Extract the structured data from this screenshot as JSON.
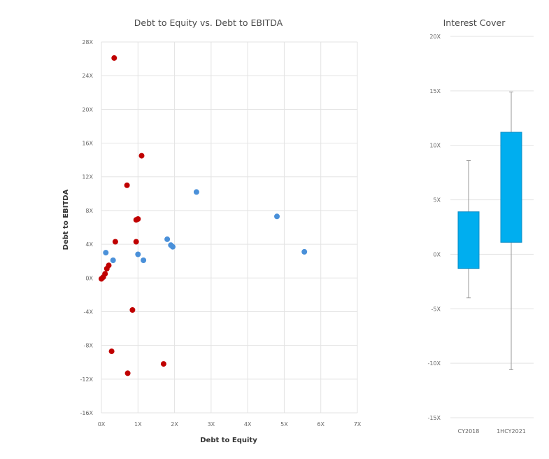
{
  "chart_data": [
    {
      "type": "scatter",
      "title": "Debt to Equity vs. Debt to EBITDA",
      "xlabel": "Debt to Equity",
      "ylabel": "Debt to EBITDA",
      "xlim": [
        0,
        7
      ],
      "ylim": [
        -16,
        28
      ],
      "x_ticks": [
        "0X",
        "1X",
        "2X",
        "3X",
        "4X",
        "5X",
        "6X",
        "7X"
      ],
      "y_ticks": [
        "28X",
        "24X",
        "20X",
        "16X",
        "12X",
        "8X",
        "4X",
        "0X",
        "-4X",
        "-8X",
        "-12X",
        "-16X"
      ],
      "grid": true,
      "colors": {
        "blue": "#4a90d9",
        "red": "#c00000"
      },
      "series": [
        {
          "color": "#4a90d9",
          "points": [
            [
              0.12,
              3.0
            ],
            [
              0.32,
              2.1
            ],
            [
              1.0,
              2.8
            ],
            [
              1.15,
              2.1
            ],
            [
              1.8,
              4.6
            ],
            [
              1.9,
              3.9
            ],
            [
              1.95,
              3.7
            ],
            [
              2.6,
              10.2
            ],
            [
              4.8,
              7.3
            ],
            [
              5.55,
              3.1
            ],
            [
              0.05,
              0.1
            ]
          ]
        },
        {
          "color": "#c00000",
          "points": [
            [
              0.35,
              26.1
            ],
            [
              1.1,
              14.5
            ],
            [
              0.7,
              11.0
            ],
            [
              1.0,
              7.0
            ],
            [
              0.95,
              6.9
            ],
            [
              0.38,
              4.3
            ],
            [
              0.95,
              4.3
            ],
            [
              0.2,
              1.5
            ],
            [
              0.15,
              1.1
            ],
            [
              0.1,
              0.5
            ],
            [
              0.05,
              0.1
            ],
            [
              0.0,
              -0.1
            ],
            [
              0.85,
              -3.8
            ],
            [
              0.28,
              -8.7
            ],
            [
              1.7,
              -10.2
            ],
            [
              0.72,
              -11.3
            ]
          ]
        }
      ]
    },
    {
      "type": "box",
      "title": "Interest Cover",
      "categories": [
        "CY2018",
        "1HCY2021"
      ],
      "ylim": [
        -15,
        20
      ],
      "y_ticks": [
        "20X",
        "15X",
        "10X",
        "5X",
        "0X",
        "-5X",
        "-10X",
        "-15X"
      ],
      "grid": true,
      "color": "#00aeef",
      "boxes": [
        {
          "min": -4.0,
          "q1": -1.3,
          "q3": 3.9,
          "max": 8.6
        },
        {
          "min": -10.6,
          "q1": 1.1,
          "q3": 11.2,
          "max": 14.9
        }
      ]
    }
  ]
}
